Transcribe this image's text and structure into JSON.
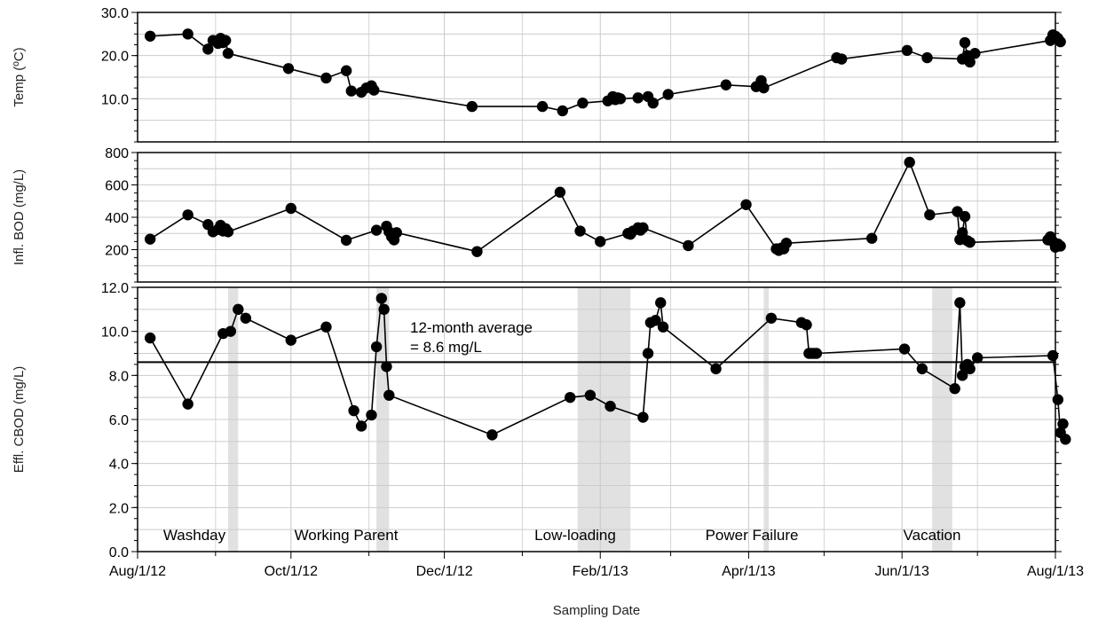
{
  "chart_data": {
    "type": "line",
    "xlabel": "Sampling Date",
    "x_ticks": [
      {
        "date": "2012-08-01",
        "label": "Aug/1/12"
      },
      {
        "date": "2012-10-01",
        "label": "Oct/1/12"
      },
      {
        "date": "2012-12-01",
        "label": "Dec/1/12"
      },
      {
        "date": "2013-02-01",
        "label": "Feb/1/13"
      },
      {
        "date": "2013-04-01",
        "label": "Apr/1/13"
      },
      {
        "date": "2013-06-01",
        "label": "Jun/1/13"
      },
      {
        "date": "2013-08-01",
        "label": "Aug/1/13"
      }
    ],
    "x_minor_ticks": [
      "2012-09-01",
      "2012-11-01",
      "2013-01-01",
      "2013-03-01",
      "2013-05-01",
      "2013-07-01"
    ],
    "xlim": [
      "2012-08-01",
      "2013-08-01"
    ],
    "events": [
      {
        "label": "Washday",
        "start": "2012-09-06",
        "end": "2012-09-10"
      },
      {
        "label": "Working Parent",
        "start": "2012-11-04",
        "end": "2012-11-09"
      },
      {
        "label": "Low-loading",
        "start": "2013-01-23",
        "end": "2013-02-13"
      },
      {
        "label": "Power Failure",
        "start": "2013-04-07",
        "end": "2013-04-09"
      },
      {
        "label": "Vacation",
        "start": "2013-06-13",
        "end": "2013-06-21"
      }
    ],
    "panels": [
      {
        "ylabel": "Temp (ºC)",
        "ylim": [
          0,
          30
        ],
        "yticks": [
          10,
          20,
          30
        ],
        "ytick_labels": [
          "10.0",
          "20.0",
          "30.0"
        ],
        "series": [
          {
            "points": [
              [
                "2012-08-06",
                24.5
              ],
              [
                "2012-08-21",
                25.0
              ],
              [
                "2012-08-29",
                21.5
              ],
              [
                "2012-08-31",
                23.5
              ],
              [
                "2012-09-02",
                22.8
              ],
              [
                "2012-09-03",
                24.0
              ],
              [
                "2012-09-04",
                23.0
              ],
              [
                "2012-09-05",
                23.5
              ],
              [
                "2012-09-06",
                20.5
              ],
              [
                "2012-09-30",
                17.0
              ],
              [
                "2012-10-15",
                14.8
              ],
              [
                "2012-10-23",
                16.5
              ],
              [
                "2012-10-25",
                11.8
              ],
              [
                "2012-10-29",
                11.5
              ],
              [
                "2012-10-31",
                12.5
              ],
              [
                "2012-11-02",
                13.0
              ],
              [
                "2012-11-03",
                12.0
              ],
              [
                "2012-12-12",
                8.2
              ],
              [
                "2013-01-09",
                8.2
              ],
              [
                "2013-01-17",
                7.2
              ],
              [
                "2013-01-25",
                9.0
              ],
              [
                "2013-02-04",
                9.5
              ],
              [
                "2013-02-06",
                10.5
              ],
              [
                "2013-02-07",
                9.8
              ],
              [
                "2013-02-08",
                10.2
              ],
              [
                "2013-02-09",
                10.0
              ],
              [
                "2013-02-16",
                10.2
              ],
              [
                "2013-02-20",
                10.5
              ],
              [
                "2013-02-22",
                9.0
              ],
              [
                "2013-02-28",
                11.0
              ],
              [
                "2013-03-23",
                13.2
              ],
              [
                "2013-04-04",
                12.8
              ],
              [
                "2013-04-06",
                14.2
              ],
              [
                "2013-04-07",
                12.5
              ],
              [
                "2013-05-06",
                19.5
              ],
              [
                "2013-05-08",
                19.2
              ],
              [
                "2013-06-03",
                21.2
              ],
              [
                "2013-06-11",
                19.5
              ],
              [
                "2013-06-25",
                19.2
              ],
              [
                "2013-06-26",
                23.0
              ],
              [
                "2013-06-27",
                20.0
              ],
              [
                "2013-06-28",
                18.5
              ],
              [
                "2013-06-30",
                20.5
              ],
              [
                "2013-07-30",
                23.5
              ],
              [
                "2013-07-31",
                24.8
              ],
              [
                "2013-08-01",
                24.5
              ],
              [
                "2013-08-02",
                24.0
              ],
              [
                "2013-08-03",
                23.2
              ]
            ]
          }
        ]
      },
      {
        "ylabel": "Infl. BOD (mg/L)",
        "ylim": [
          0,
          800
        ],
        "yticks": [
          200,
          400,
          600,
          800
        ],
        "ytick_labels": [
          "200",
          "400",
          "600",
          "800"
        ],
        "series": [
          {
            "points": [
              [
                "2012-08-06",
                265
              ],
              [
                "2012-08-21",
                415
              ],
              [
                "2012-08-29",
                355
              ],
              [
                "2012-08-31",
                310
              ],
              [
                "2012-09-02",
                325
              ],
              [
                "2012-09-03",
                350
              ],
              [
                "2012-09-04",
                315
              ],
              [
                "2012-09-05",
                330
              ],
              [
                "2012-09-06",
                310
              ],
              [
                "2012-10-01",
                455
              ],
              [
                "2012-10-23",
                258
              ],
              [
                "2012-11-04",
                320
              ],
              [
                "2012-11-08",
                345
              ],
              [
                "2012-11-09",
                310
              ],
              [
                "2012-11-10",
                280
              ],
              [
                "2012-11-11",
                260
              ],
              [
                "2012-11-12",
                305
              ],
              [
                "2012-12-14",
                188
              ],
              [
                "2013-01-16",
                555
              ],
              [
                "2013-01-24",
                315
              ],
              [
                "2013-02-01",
                250
              ],
              [
                "2013-02-12",
                300
              ],
              [
                "2013-02-13",
                295
              ],
              [
                "2013-02-14",
                315
              ],
              [
                "2013-02-16",
                335
              ],
              [
                "2013-02-17",
                320
              ],
              [
                "2013-02-18",
                335
              ],
              [
                "2013-03-08",
                225
              ],
              [
                "2013-03-31",
                478
              ],
              [
                "2013-04-12",
                205
              ],
              [
                "2013-04-13",
                195
              ],
              [
                "2013-04-14",
                210
              ],
              [
                "2013-04-15",
                205
              ],
              [
                "2013-04-16",
                240
              ],
              [
                "2013-05-20",
                270
              ],
              [
                "2013-06-04",
                740
              ],
              [
                "2013-06-12",
                415
              ],
              [
                "2013-06-23",
                435
              ],
              [
                "2013-06-24",
                262
              ],
              [
                "2013-06-25",
                305
              ],
              [
                "2013-06-26",
                405
              ],
              [
                "2013-06-27",
                255
              ],
              [
                "2013-06-28",
                245
              ],
              [
                "2013-07-29",
                260
              ],
              [
                "2013-07-30",
                280
              ],
              [
                "2013-07-31",
                250
              ],
              [
                "2013-08-01",
                215
              ],
              [
                "2013-08-02",
                235
              ],
              [
                "2013-08-03",
                222
              ]
            ]
          }
        ]
      },
      {
        "ylabel": "Effl. CBOD (mg/L)",
        "ylim": [
          0,
          12
        ],
        "yticks": [
          0,
          2,
          4,
          6,
          8,
          10,
          12
        ],
        "ytick_labels": [
          "0.0",
          "2.0",
          "4.0",
          "6.0",
          "8.0",
          "10.0",
          "12.0"
        ],
        "reference_line": {
          "y": 8.6,
          "label_line1": "12-month average",
          "label_line2": "= 8.6 mg/L"
        },
        "series": [
          {
            "points": [
              [
                "2012-08-06",
                9.7
              ],
              [
                "2012-08-21",
                6.7
              ],
              [
                "2012-09-04",
                9.9
              ],
              [
                "2012-09-07",
                10.0
              ],
              [
                "2012-09-10",
                11.0
              ],
              [
                "2012-09-13",
                10.6
              ],
              [
                "2012-10-01",
                9.6
              ],
              [
                "2012-10-15",
                10.2
              ],
              [
                "2012-10-26",
                6.4
              ],
              [
                "2012-10-29",
                5.7
              ],
              [
                "2012-11-02",
                6.2
              ],
              [
                "2012-11-04",
                9.3
              ],
              [
                "2012-11-06",
                11.5
              ],
              [
                "2012-11-07",
                11.0
              ],
              [
                "2012-11-08",
                8.4
              ],
              [
                "2012-11-09",
                7.1
              ],
              [
                "2012-12-20",
                5.3
              ],
              [
                "2013-01-20",
                7.0
              ],
              [
                "2013-01-28",
                7.1
              ],
              [
                "2013-02-05",
                6.6
              ],
              [
                "2013-02-18",
                6.1
              ],
              [
                "2013-02-20",
                9.0
              ],
              [
                "2013-02-21",
                10.4
              ],
              [
                "2013-02-23",
                10.5
              ],
              [
                "2013-02-25",
                11.3
              ],
              [
                "2013-02-26",
                10.2
              ],
              [
                "2013-03-19",
                8.3
              ],
              [
                "2013-04-10",
                10.6
              ],
              [
                "2013-04-22",
                10.4
              ],
              [
                "2013-04-24",
                10.3
              ],
              [
                "2013-04-25",
                9.0
              ],
              [
                "2013-04-26",
                9.0
              ],
              [
                "2013-04-27",
                9.0
              ],
              [
                "2013-04-28",
                9.0
              ],
              [
                "2013-06-02",
                9.2
              ],
              [
                "2013-06-09",
                8.3
              ],
              [
                "2013-06-22",
                7.4
              ],
              [
                "2013-06-24",
                11.3
              ],
              [
                "2013-06-25",
                8.0
              ],
              [
                "2013-06-26",
                8.4
              ],
              [
                "2013-06-27",
                8.5
              ],
              [
                "2013-06-28",
                8.3
              ],
              [
                "2013-07-01",
                8.8
              ],
              [
                "2013-07-31",
                8.9
              ],
              [
                "2013-08-02",
                6.9
              ],
              [
                "2013-08-03",
                5.4
              ],
              [
                "2013-08-04",
                5.8
              ],
              [
                "2013-08-05",
                5.1
              ]
            ]
          }
        ]
      }
    ]
  }
}
